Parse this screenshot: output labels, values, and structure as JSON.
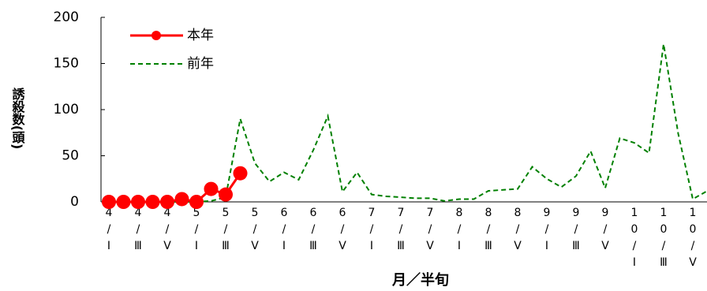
{
  "chart_data": {
    "type": "line",
    "y_label": "誘殺数(頭)",
    "x_label": "月／半旬",
    "categories": [
      "4/Ⅰ",
      null,
      "4/Ⅲ",
      null,
      "4/Ⅴ",
      null,
      "5/Ⅰ",
      null,
      "5/Ⅲ",
      null,
      "5/Ⅴ",
      null,
      "6/Ⅰ",
      null,
      "6/Ⅲ",
      null,
      "6/Ⅴ",
      null,
      "7/Ⅰ",
      null,
      "7/Ⅲ",
      null,
      "7/Ⅴ",
      null,
      "8/Ⅰ",
      null,
      "8/Ⅲ",
      null,
      "8/Ⅴ",
      null,
      "9/Ⅰ",
      null,
      "9/Ⅲ",
      null,
      "9/Ⅴ",
      null,
      "10/Ⅰ",
      null,
      "10/Ⅲ",
      null,
      "10/Ⅴ",
      null
    ],
    "series": [
      {
        "name": "本年",
        "color": "#ff0000",
        "style": "solid",
        "marker": true,
        "values": [
          0,
          0,
          0,
          0,
          0,
          3,
          0,
          14,
          8,
          31,
          null,
          null,
          null,
          null,
          null,
          null,
          null,
          null,
          null,
          null,
          null,
          null,
          null,
          null,
          null,
          null,
          null,
          null,
          null,
          null,
          null,
          null,
          null,
          null,
          null,
          null,
          null,
          null,
          null,
          null,
          null,
          null
        ]
      },
      {
        "name": "前年",
        "color": "#008000",
        "style": "dashed",
        "marker": false,
        "values": [
          0,
          0,
          0,
          0,
          0,
          0,
          0,
          1,
          5,
          90,
          42,
          22,
          32,
          24,
          56,
          93,
          11,
          32,
          8,
          6,
          5,
          4,
          4,
          1,
          3,
          3,
          12,
          13,
          14,
          38,
          25,
          16,
          28,
          55,
          15,
          69,
          64,
          53,
          171,
          74,
          3,
          12
        ]
      }
    ],
    "ylim": [
      0,
      200
    ],
    "yticks": [
      0,
      50,
      100,
      150,
      200
    ],
    "legend": "upper-left"
  }
}
